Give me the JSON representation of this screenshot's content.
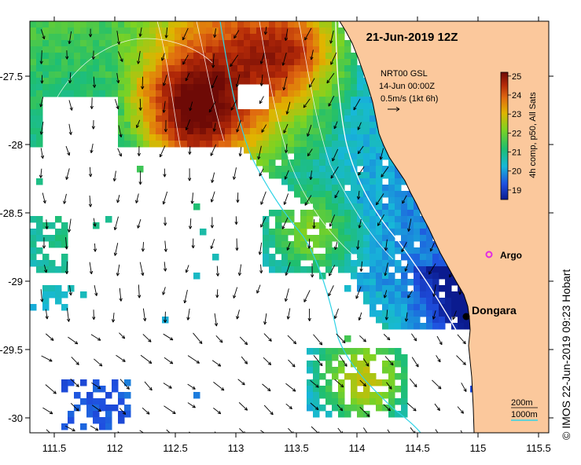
{
  "map": {
    "title": "21-Jun-2019 12Z",
    "x_ticks": [
      "111.5",
      "112",
      "112.5",
      "113",
      "113.5",
      "114",
      "114.5",
      "115",
      "115.5"
    ],
    "y_ticks": [
      "-27.5",
      "-28",
      "-28.5",
      "-29",
      "-29.5",
      "-30"
    ],
    "legend_lines": [
      "NRT00 GSL",
      "14-Jun 00:00Z",
      "0.5m/s (1kt 6h)"
    ],
    "colorbar": {
      "label": "4h comp, p50, All Sats",
      "ticks": [
        "25",
        "24",
        "23",
        "22",
        "21",
        "20",
        "19"
      ],
      "min": 18.5,
      "max": 25.2
    },
    "places": [
      {
        "name": "Dongara",
        "lon": 114.93,
        "lat": -29.25
      },
      {
        "name": "Argo",
        "lon": 115.1,
        "lat": -28.82
      }
    ],
    "depth_labels": [
      "200m",
      "1000m"
    ],
    "credit": "© IMOS 22-Jun-2019 09:23 Hobart",
    "colors": {
      "land": "#fbc89c",
      "contour_200m": "#ffffff",
      "contour_1000m": "#2fd3e6",
      "argo": "#e22be2",
      "vectors": "#000000"
    }
  }
}
